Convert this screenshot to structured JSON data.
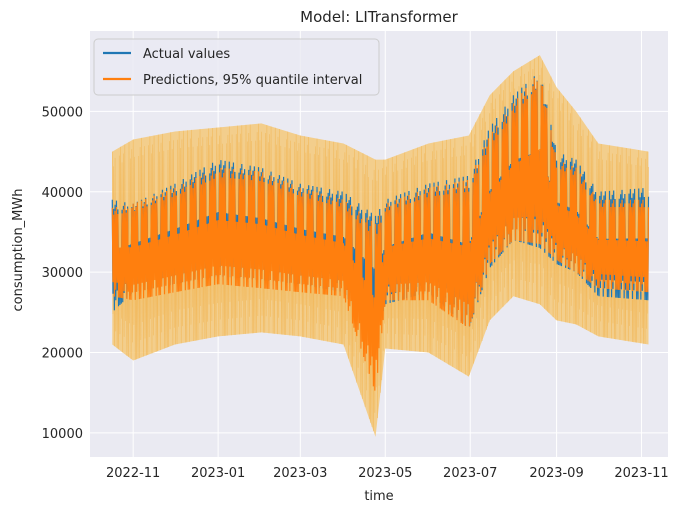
{
  "chart_data": {
    "type": "line",
    "title": "Model: LITransformer",
    "xlabel": "time",
    "ylabel": "consumption_MWh",
    "x_range": [
      "2022-10-01",
      "2023-11-20"
    ],
    "ylim": [
      7000,
      60000
    ],
    "x_ticks": [
      {
        "date": "2022-11-01",
        "label": "2022-11"
      },
      {
        "date": "2023-01-01",
        "label": "2023-01"
      },
      {
        "date": "2023-03-01",
        "label": "2023-03"
      },
      {
        "date": "2023-05-01",
        "label": "2023-05"
      },
      {
        "date": "2023-07-01",
        "label": "2023-07"
      },
      {
        "date": "2023-09-01",
        "label": "2023-09"
      },
      {
        "date": "2023-11-01",
        "label": "2023-11"
      }
    ],
    "y_ticks": [
      10000,
      20000,
      30000,
      40000,
      50000
    ],
    "grid": true,
    "legend_position": "top-left",
    "colors": {
      "actual": "#1f77b4",
      "prediction": "#ff7f0e",
      "interval": "#f5c97a",
      "plot_background": "#eaeaf2",
      "grid": "#ffffff"
    },
    "series": [
      {
        "name": "Actual values",
        "style": "line",
        "x": [
          "2022-10-17",
          "2022-11-01",
          "2022-12-01",
          "2023-01-01",
          "2023-02-01",
          "2023-03-01",
          "2023-04-01",
          "2023-04-24",
          "2023-05-01",
          "2023-06-01",
          "2023-06-30",
          "2023-07-15",
          "2023-08-01",
          "2023-08-20",
          "2023-09-01",
          "2023-09-15",
          "2023-10-01",
          "2023-11-06"
        ],
        "upper": [
          39000,
          38500,
          41000,
          44000,
          43000,
          41000,
          40000,
          37000,
          39000,
          41000,
          42000,
          48000,
          52000,
          55000,
          45000,
          44000,
          40000,
          40500
        ],
        "lower": [
          25000,
          27500,
          28500,
          29500,
          29000,
          28500,
          27500,
          22000,
          26000,
          27500,
          23000,
          30500,
          34000,
          33000,
          31000,
          30000,
          27000,
          26500
        ]
      },
      {
        "name": "Predictions, 95% quantile interval",
        "style": "band",
        "x": [
          "2022-10-17",
          "2022-11-01",
          "2022-12-01",
          "2023-01-01",
          "2023-02-01",
          "2023-03-01",
          "2023-04-01",
          "2023-04-24",
          "2023-05-01",
          "2023-06-01",
          "2023-06-30",
          "2023-07-15",
          "2023-08-01",
          "2023-08-20",
          "2023-09-01",
          "2023-09-15",
          "2023-10-01",
          "2023-11-06"
        ],
        "upper": [
          45000,
          46500,
          47500,
          48000,
          48500,
          47000,
          46000,
          44000,
          44000,
          46000,
          47000,
          52000,
          55000,
          57000,
          53000,
          50000,
          46000,
          45000
        ],
        "lower": [
          21000,
          19000,
          21000,
          22000,
          22500,
          22000,
          21000,
          9500,
          20500,
          20000,
          17000,
          24000,
          27000,
          26000,
          24000,
          23500,
          22000,
          21000
        ],
        "median_upper": [
          38000,
          38500,
          40500,
          43000,
          42500,
          40500,
          39000,
          36000,
          38500,
          40500,
          41500,
          47000,
          51000,
          55000,
          44000,
          43000,
          39000,
          39000
        ],
        "median_lower": [
          27000,
          26500,
          27500,
          28500,
          28000,
          27500,
          27000,
          15000,
          26500,
          26500,
          23000,
          31000,
          34000,
          33500,
          31500,
          30000,
          28000,
          27500
        ]
      }
    ]
  }
}
